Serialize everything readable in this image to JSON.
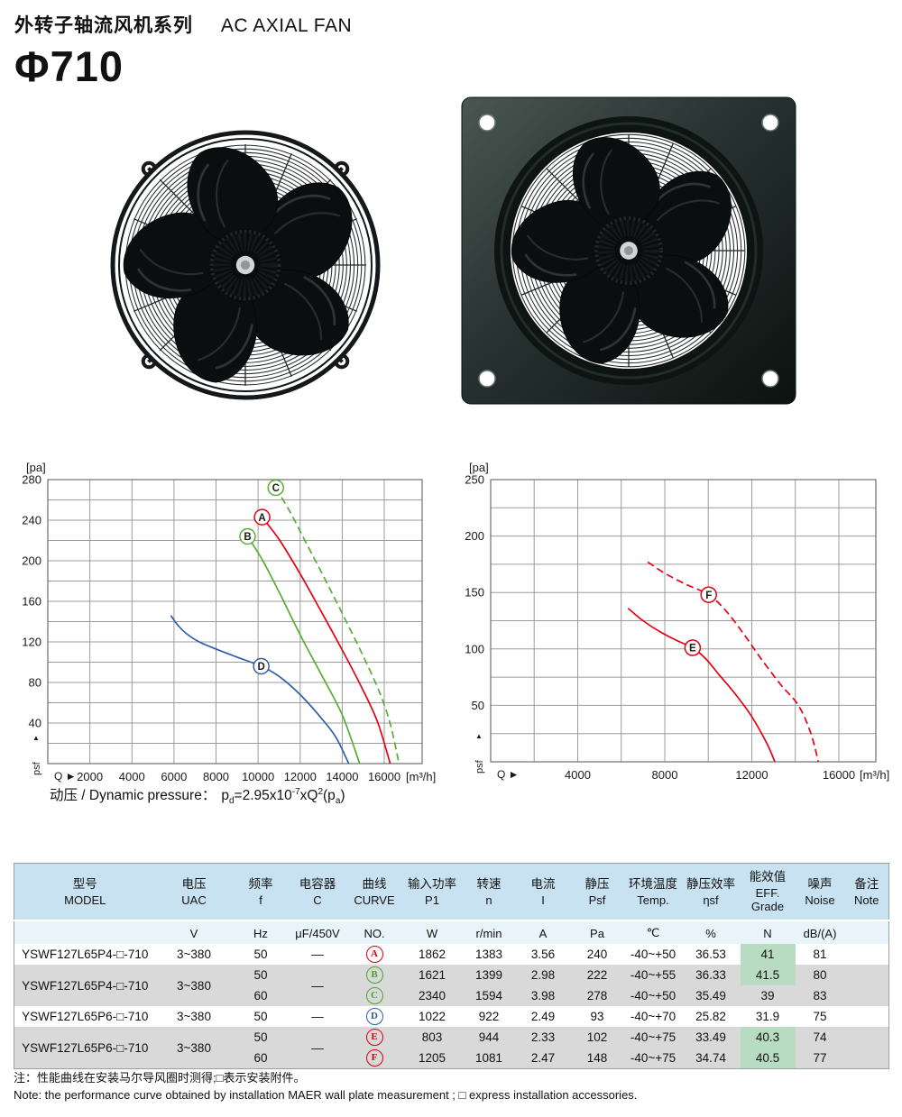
{
  "header": {
    "series_cn": "外转子轴流风机系列",
    "series_en": "AC AXIAL FAN",
    "model_size": "Φ710"
  },
  "formula": {
    "label": "动压 / Dynamic pressure：",
    "p": "p",
    "sub_d": "d",
    "eq": "=2.95x10",
    "sup_exp": "-7",
    "xq": "xQ",
    "sup_sq": "2",
    "pa": "(p",
    "sub_a": "a",
    "close": ")"
  },
  "chart_data": [
    {
      "type": "line",
      "title": "",
      "ylabel": "[pa]",
      "xlabel": "[m³/h]",
      "x_axis_flow_label": "Q ►",
      "y_axis_flow_label": "psf",
      "y_axis_arrow": "▲",
      "xlim": [
        0,
        17800
      ],
      "ylim": [
        0,
        280
      ],
      "x_grid_step": 2000,
      "y_grid_step": 20,
      "x_ticks": [
        2000,
        4000,
        6000,
        8000,
        10000,
        12000,
        14000,
        16000
      ],
      "y_ticks": [
        40,
        80,
        120,
        160,
        200,
        240,
        280
      ],
      "grid": true,
      "legend": "circled letters on curves",
      "series": [
        {
          "name": "D",
          "color": "#2f5da9",
          "dash": false,
          "marker_at": [
            10150,
            96
          ],
          "points": [
            [
              5850,
              146
            ],
            [
              6200,
              136
            ],
            [
              6600,
              128
            ],
            [
              7200,
              120
            ],
            [
              8000,
              113
            ],
            [
              9000,
              105
            ],
            [
              10150,
              96
            ],
            [
              11000,
              86
            ],
            [
              12000,
              68
            ],
            [
              13000,
              45
            ],
            [
              13700,
              26
            ],
            [
              14310,
              0
            ]
          ]
        },
        {
          "name": "B",
          "color": "#56ae31",
          "dash": false,
          "marker_at": [
            9500,
            224
          ],
          "points": [
            [
              9500,
              224
            ],
            [
              10200,
              201
            ],
            [
              11000,
              169
            ],
            [
              12000,
              127
            ],
            [
              13000,
              88
            ],
            [
              14000,
              48
            ],
            [
              14830,
              0
            ]
          ]
        },
        {
          "name": "A",
          "color": "#e50012",
          "dash": false,
          "marker_at": [
            10190,
            243
          ],
          "points": [
            [
              10190,
              243
            ],
            [
              11000,
              221
            ],
            [
              12000,
              187
            ],
            [
              13000,
              150
            ],
            [
              14000,
              112
            ],
            [
              15000,
              72
            ],
            [
              15700,
              40
            ],
            [
              16280,
              0
            ]
          ]
        },
        {
          "name": "C",
          "color": "#56ae31",
          "dash": true,
          "marker_at": [
            10840,
            272
          ],
          "points": [
            [
              10840,
              272
            ],
            [
              11500,
              249
            ],
            [
              12300,
              217
            ],
            [
              13200,
              181
            ],
            [
              14100,
              144
            ],
            [
              15000,
              106
            ],
            [
              15800,
              69
            ],
            [
              16300,
              38
            ],
            [
              16700,
              0
            ]
          ]
        }
      ]
    },
    {
      "type": "line",
      "title": "",
      "ylabel": "[pa]",
      "xlabel": "[m³/h]",
      "x_axis_flow_label": "Q ►",
      "y_axis_flow_label": "psf",
      "y_axis_arrow": "▲",
      "xlim": [
        0,
        17700
      ],
      "ylim": [
        0,
        250
      ],
      "x_grid_step": 2000,
      "y_grid_step": 25,
      "x_ticks": [
        4000,
        8000,
        12000,
        16000
      ],
      "y_ticks": [
        50,
        100,
        150,
        200,
        250
      ],
      "grid": true,
      "legend": "circled letters on curves",
      "series": [
        {
          "name": "E",
          "color": "#e50012",
          "dash": false,
          "marker_at": [
            9280,
            101
          ],
          "points": [
            [
              6310,
              136
            ],
            [
              7000,
              125
            ],
            [
              7800,
              115
            ],
            [
              8600,
              107
            ],
            [
              9280,
              101
            ],
            [
              9900,
              91
            ],
            [
              10500,
              77
            ],
            [
              11200,
              61
            ],
            [
              12000,
              40
            ],
            [
              12700,
              16
            ],
            [
              13060,
              0
            ]
          ]
        },
        {
          "name": "F",
          "color": "#e50012",
          "dash": true,
          "marker_at": [
            10020,
            148
          ],
          "points": [
            [
              7220,
              177
            ],
            [
              8000,
              167
            ],
            [
              9000,
              157
            ],
            [
              10020,
              148
            ],
            [
              10800,
              134
            ],
            [
              11600,
              114
            ],
            [
              12400,
              92
            ],
            [
              13300,
              69
            ],
            [
              14140,
              50
            ],
            [
              14700,
              26
            ],
            [
              15060,
              0
            ]
          ]
        }
      ]
    }
  ],
  "table": {
    "columns": [
      {
        "key": "model",
        "cn": "型号",
        "en": "MODEL",
        "unit": ""
      },
      {
        "key": "voltage",
        "cn": "电压",
        "en": "UAC",
        "unit": "V"
      },
      {
        "key": "freq",
        "cn": "频率",
        "en": "f",
        "unit": "Hz"
      },
      {
        "key": "capacitor",
        "cn": "电容器",
        "en": "C",
        "unit": "μF/450V"
      },
      {
        "key": "curve",
        "cn": "曲线",
        "en": "CURVE",
        "unit": "NO."
      },
      {
        "key": "p1",
        "cn": "输入功率",
        "en": "P1",
        "unit": "W"
      },
      {
        "key": "speed",
        "cn": "转速",
        "en": "n",
        "unit": "r/min"
      },
      {
        "key": "current",
        "cn": "电流",
        "en": "I",
        "unit": "A"
      },
      {
        "key": "psf",
        "cn": "静压",
        "en": "Psf",
        "unit": "Pa"
      },
      {
        "key": "temp",
        "cn": "环境温度",
        "en": "Temp.",
        "unit": "℃"
      },
      {
        "key": "nsf",
        "cn": "静压效率",
        "en": "ηsf",
        "unit": "%"
      },
      {
        "key": "eff",
        "cn": "能效值",
        "en": "EFF. Grade",
        "unit": "N"
      },
      {
        "key": "noise",
        "cn": "噪声",
        "en": "Noise",
        "unit": "dB/(A)"
      },
      {
        "key": "note",
        "cn": "备注",
        "en": "Note",
        "unit": ""
      }
    ],
    "rows": [
      {
        "model": "YSWF127L65P4-□-710",
        "voltage": "3~380",
        "capacitor": "—",
        "shaded": false,
        "variants": [
          {
            "freq": "50",
            "curve": "A",
            "curve_color": "#d7000f",
            "p1": "1862",
            "speed": "1383",
            "current": "3.56",
            "psf": "240",
            "temp": "-40~+50",
            "nsf": "36.53",
            "eff": "41",
            "eff_highlight": true,
            "noise": "81",
            "note": ""
          }
        ]
      },
      {
        "model": "YSWF127L65P4-□-710",
        "voltage": "3~380",
        "capacitor": "—",
        "shaded": true,
        "variants": [
          {
            "freq": "50",
            "curve": "B",
            "curve_color": "#4aa32c",
            "p1": "1621",
            "speed": "1399",
            "current": "2.98",
            "psf": "222",
            "temp": "-40~+55",
            "nsf": "36.33",
            "eff": "41.5",
            "eff_highlight": true,
            "noise": "80",
            "note": ""
          },
          {
            "freq": "60",
            "curve": "C",
            "curve_color": "#4aa32c",
            "p1": "2340",
            "speed": "1594",
            "current": "3.98",
            "psf": "278",
            "temp": "-40~+50",
            "nsf": "35.49",
            "eff": "39",
            "eff_highlight": false,
            "noise": "83",
            "note": ""
          }
        ]
      },
      {
        "model": "YSWF127L65P6-□-710",
        "voltage": "3~380",
        "capacitor": "—",
        "shaded": false,
        "variants": [
          {
            "freq": "50",
            "curve": "D",
            "curve_color": "#2a5caa",
            "p1": "1022",
            "speed": "922",
            "current": "2.49",
            "psf": "93",
            "temp": "-40~+70",
            "nsf": "25.82",
            "eff": "31.9",
            "eff_highlight": false,
            "noise": "75",
            "note": ""
          }
        ]
      },
      {
        "model": "YSWF127L65P6-□-710",
        "voltage": "3~380",
        "capacitor": "—",
        "shaded": true,
        "variants": [
          {
            "freq": "50",
            "curve": "E",
            "curve_color": "#d7000f",
            "p1": "803",
            "speed": "944",
            "current": "2.33",
            "psf": "102",
            "temp": "-40~+75",
            "nsf": "33.49",
            "eff": "40.3",
            "eff_highlight": true,
            "noise": "74",
            "note": ""
          },
          {
            "freq": "60",
            "curve": "F",
            "curve_color": "#d7000f",
            "p1": "1205",
            "speed": "1081",
            "current": "2.47",
            "psf": "148",
            "temp": "-40~+75",
            "nsf": "34.74",
            "eff": "40.5",
            "eff_highlight": true,
            "noise": "77",
            "note": ""
          }
        ]
      }
    ]
  },
  "notes": {
    "cn": "注：性能曲线在安装马尔导风圈时测得;□表示安装附件。",
    "en": "Note: the performance curve obtained by installation MAER wall plate measurement ; □ express installation accessories."
  },
  "colors": {
    "curve_red": "#e50012",
    "curve_green": "#56ae31",
    "curve_blue": "#2f5da9",
    "table_header_bg": "#c9e2f1",
    "table_units_bg": "#e8f3fa",
    "table_shade_bg": "#d9d9d9",
    "eff_highlight_bg": "#b7dcc2"
  }
}
